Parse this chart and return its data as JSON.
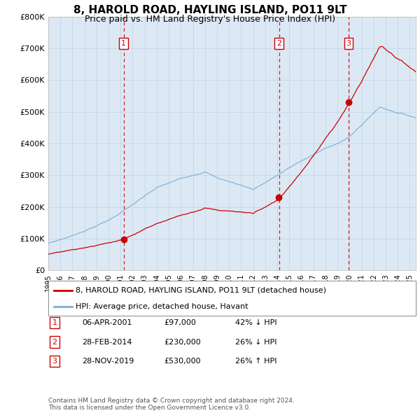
{
  "title": "8, HAROLD ROAD, HAYLING ISLAND, PO11 9LT",
  "subtitle": "Price paid vs. HM Land Registry's House Price Index (HPI)",
  "ylabel_ticks": [
    "£0",
    "£100K",
    "£200K",
    "£300K",
    "£400K",
    "£500K",
    "£600K",
    "£700K",
    "£800K"
  ],
  "ytick_values": [
    0,
    100000,
    200000,
    300000,
    400000,
    500000,
    600000,
    700000,
    800000
  ],
  "ylim": [
    0,
    800000
  ],
  "xlim_start": 1995.0,
  "xlim_end": 2025.5,
  "sales": [
    {
      "date_num": 2001.26,
      "price": 97000,
      "label": "1"
    },
    {
      "date_num": 2014.16,
      "price": 230000,
      "label": "2"
    },
    {
      "date_num": 2019.91,
      "price": 530000,
      "label": "3"
    }
  ],
  "vline_dates": [
    2001.26,
    2014.16,
    2019.91
  ],
  "legend_property": "8, HAROLD ROAD, HAYLING ISLAND, PO11 9LT (detached house)",
  "legend_hpi": "HPI: Average price, detached house, Havant",
  "table_rows": [
    {
      "num": "1",
      "date": "06-APR-2001",
      "price": "£97,000",
      "hpi": "42% ↓ HPI"
    },
    {
      "num": "2",
      "date": "28-FEB-2014",
      "price": "£230,000",
      "hpi": "26% ↓ HPI"
    },
    {
      "num": "3",
      "date": "28-NOV-2019",
      "price": "£530,000",
      "hpi": "26% ↑ HPI"
    }
  ],
  "footnote": "Contains HM Land Registry data © Crown copyright and database right 2024.\nThis data is licensed under the Open Government Licence v3.0.",
  "property_color": "#cc0000",
  "hpi_color": "#7aaed6",
  "vline_color": "#cc0000",
  "background_color": "#dce9f5",
  "plot_bg": "#dce9f5",
  "grid_color": "#c8d8e8",
  "label_box_color": "#cc0000",
  "xtick_years": [
    1995,
    1996,
    1997,
    1998,
    1999,
    2000,
    2001,
    2002,
    2003,
    2004,
    2005,
    2006,
    2007,
    2008,
    2009,
    2010,
    2011,
    2012,
    2013,
    2014,
    2015,
    2016,
    2017,
    2018,
    2019,
    2020,
    2021,
    2022,
    2023,
    2024,
    2025
  ]
}
